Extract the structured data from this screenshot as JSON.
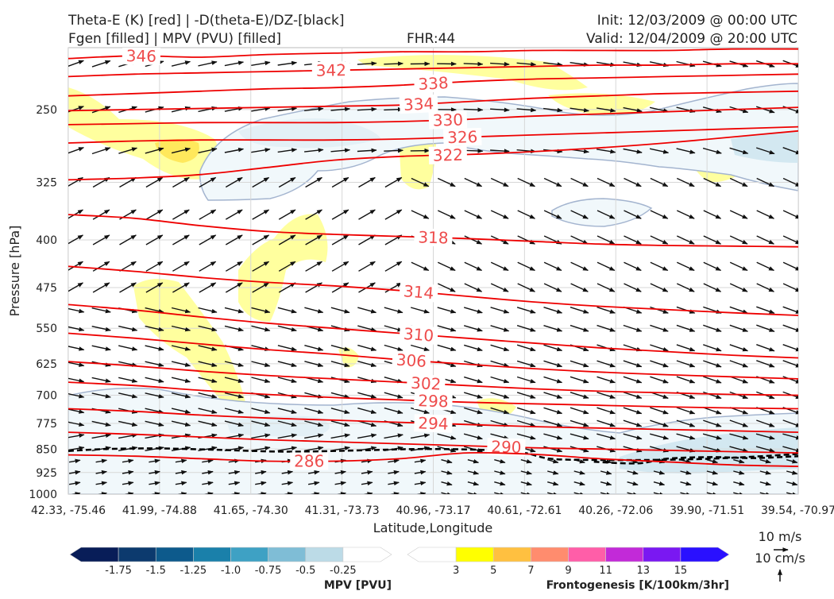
{
  "header": {
    "title_left_1": "Theta-E (K) [red] | -D(theta-E)/DZ-[black]",
    "title_left_2": "Fgen [filled] | MPV (PVU) [filled]",
    "fhr": "FHR:44",
    "init": "Init: 12/03/2009 @ 00:00 UTC",
    "valid": "Valid: 12/04/2009 @ 20:00 UTC"
  },
  "colors": {
    "theta_e": "#ee0000",
    "theta_e_label": "#ee4c4c",
    "ddz": "#000000",
    "mpv_outline": "#a3b4cf",
    "wind": "#111111"
  },
  "chart_data": {
    "type": "cross-section",
    "xlabel": "Latitude,Longitude",
    "ylabel": "Pressure [hPa]",
    "x_ticks": [
      "42.33, -75.46",
      "41.99, -74.88",
      "41.65, -74.30",
      "41.31, -73.73",
      "40.96, -73.17",
      "40.61, -72.61",
      "40.26, -72.06",
      "39.90, -71.51",
      "39.54, -70.97"
    ],
    "y_ticks": [
      250,
      325,
      400,
      475,
      550,
      625,
      700,
      775,
      850,
      925,
      1000
    ],
    "ylim": [
      1000,
      200
    ],
    "y_scale": "log",
    "grid": true,
    "theta_e_contours": [
      {
        "value": 346,
        "label": "346",
        "y": [
          208,
          206,
          207,
          205,
          204,
          203,
          203,
          202,
          202,
          202,
          201,
          201
        ]
      },
      {
        "value": 342,
        "label": "342",
        "y": [
          222,
          220,
          219,
          218,
          217,
          216,
          215,
          214,
          213,
          213,
          212,
          212
        ]
      },
      {
        "value": 338,
        "label": "338",
        "y": [
          238,
          236,
          234,
          232,
          231,
          229,
          226,
          224,
          223,
          222,
          221,
          220
        ]
      },
      {
        "value": 334,
        "label": "334",
        "y": [
          251,
          250,
          249,
          248,
          247,
          246,
          243,
          240,
          238,
          236,
          235,
          234
        ]
      },
      {
        "value": 330,
        "label": "330",
        "y": [
          264,
          263,
          262,
          262,
          262,
          261,
          259,
          256,
          254,
          252,
          250,
          248
        ]
      },
      {
        "value": 326,
        "label": "326",
        "y": [
          282,
          280,
          279,
          279,
          279,
          278,
          276,
          274,
          272,
          270,
          268,
          266
        ]
      },
      {
        "value": 322,
        "label": "322",
        "y": [
          322,
          320,
          316,
          308,
          300,
          296,
          294,
          291,
          287,
          282,
          276,
          270
        ]
      },
      {
        "value": 318,
        "label": "318",
        "y": [
          365,
          370,
          380,
          388,
          392,
          395,
          398,
          402,
          406,
          408,
          409,
          410
        ]
      },
      {
        "value": 314,
        "label": "314",
        "y": [
          440,
          448,
          458,
          466,
          472,
          480,
          490,
          500,
          508,
          514,
          520,
          525
        ]
      },
      {
        "value": 310,
        "label": "310",
        "y": [
          505,
          515,
          528,
          540,
          550,
          560,
          570,
          580,
          590,
          598,
          606,
          612
        ]
      },
      {
        "value": 306,
        "label": "306",
        "y": [
          560,
          570,
          582,
          594,
          604,
          616,
          626,
          636,
          644,
          650,
          655,
          660
        ]
      },
      {
        "value": 302,
        "label": "302",
        "y": [
          620,
          630,
          642,
          652,
          660,
          668,
          676,
          684,
          690,
          694,
          698,
          700
        ]
      },
      {
        "value": 298,
        "label": "298",
        "y": [
          668,
          676,
          688,
          698,
          706,
          712,
          718,
          722,
          726,
          730,
          733,
          735
        ]
      },
      {
        "value": 294,
        "label": "294",
        "y": [
          735,
          742,
          752,
          760,
          766,
          772,
          778,
          784,
          788,
          792,
          796,
          800
        ]
      },
      {
        "value": 290,
        "label": "290",
        "y": [
          800,
          806,
          814,
          822,
          828,
          834,
          840,
          846,
          850,
          854,
          858,
          862
        ]
      },
      {
        "value": 286,
        "label": "286",
        "y": [
          868,
          872,
          880,
          888,
          888,
          880,
          862,
          866,
          880,
          890,
          900,
          905
        ]
      }
    ],
    "ddz_contours": [
      {
        "value": -0.5,
        "x": [
          0,
          0.05,
          0.12,
          0.2,
          0.3,
          0.4,
          0.48,
          0.56,
          0.62,
          0.66,
          0.72,
          0.8,
          0.88,
          0.95,
          1.0
        ],
        "y": [
          856,
          850,
          848,
          852,
          858,
          854,
          850,
          852,
          860,
          880,
          884,
          884,
          880,
          872,
          865
        ]
      },
      {
        "value": -1.0,
        "x": [
          0.72,
          0.78,
          0.82,
          0.88,
          0.94,
          1.0
        ],
        "y": [
          890,
          895,
          880,
          875,
          878,
          872
        ]
      }
    ],
    "mpv_colorbar": {
      "title": "MPV [PVU]",
      "ticks": [
        "-1.75",
        "-1.5",
        "-1.25",
        "-1.0",
        "-0.75",
        "-0.5",
        "-0.25"
      ],
      "colors": [
        "#081d58",
        "#0c3a6e",
        "#0d5a8c",
        "#1a80aa",
        "#3ea1c4",
        "#7fbdd6",
        "#bcdbe7",
        "#ffffff"
      ]
    },
    "fgen_colorbar": {
      "title": "Frontogenesis [K/100km/3hr]",
      "ticks": [
        "3",
        "5",
        "7",
        "9",
        "11",
        "13",
        "15"
      ],
      "colors": [
        "#ffffff",
        "#ffff00",
        "#ffc040",
        "#ff8c6e",
        "#ff5ea8",
        "#c22ad8",
        "#7a18f2",
        "#2a10ff"
      ]
    },
    "wind_reference": {
      "u": "10 m/s",
      "w": "10 cm/s"
    }
  }
}
